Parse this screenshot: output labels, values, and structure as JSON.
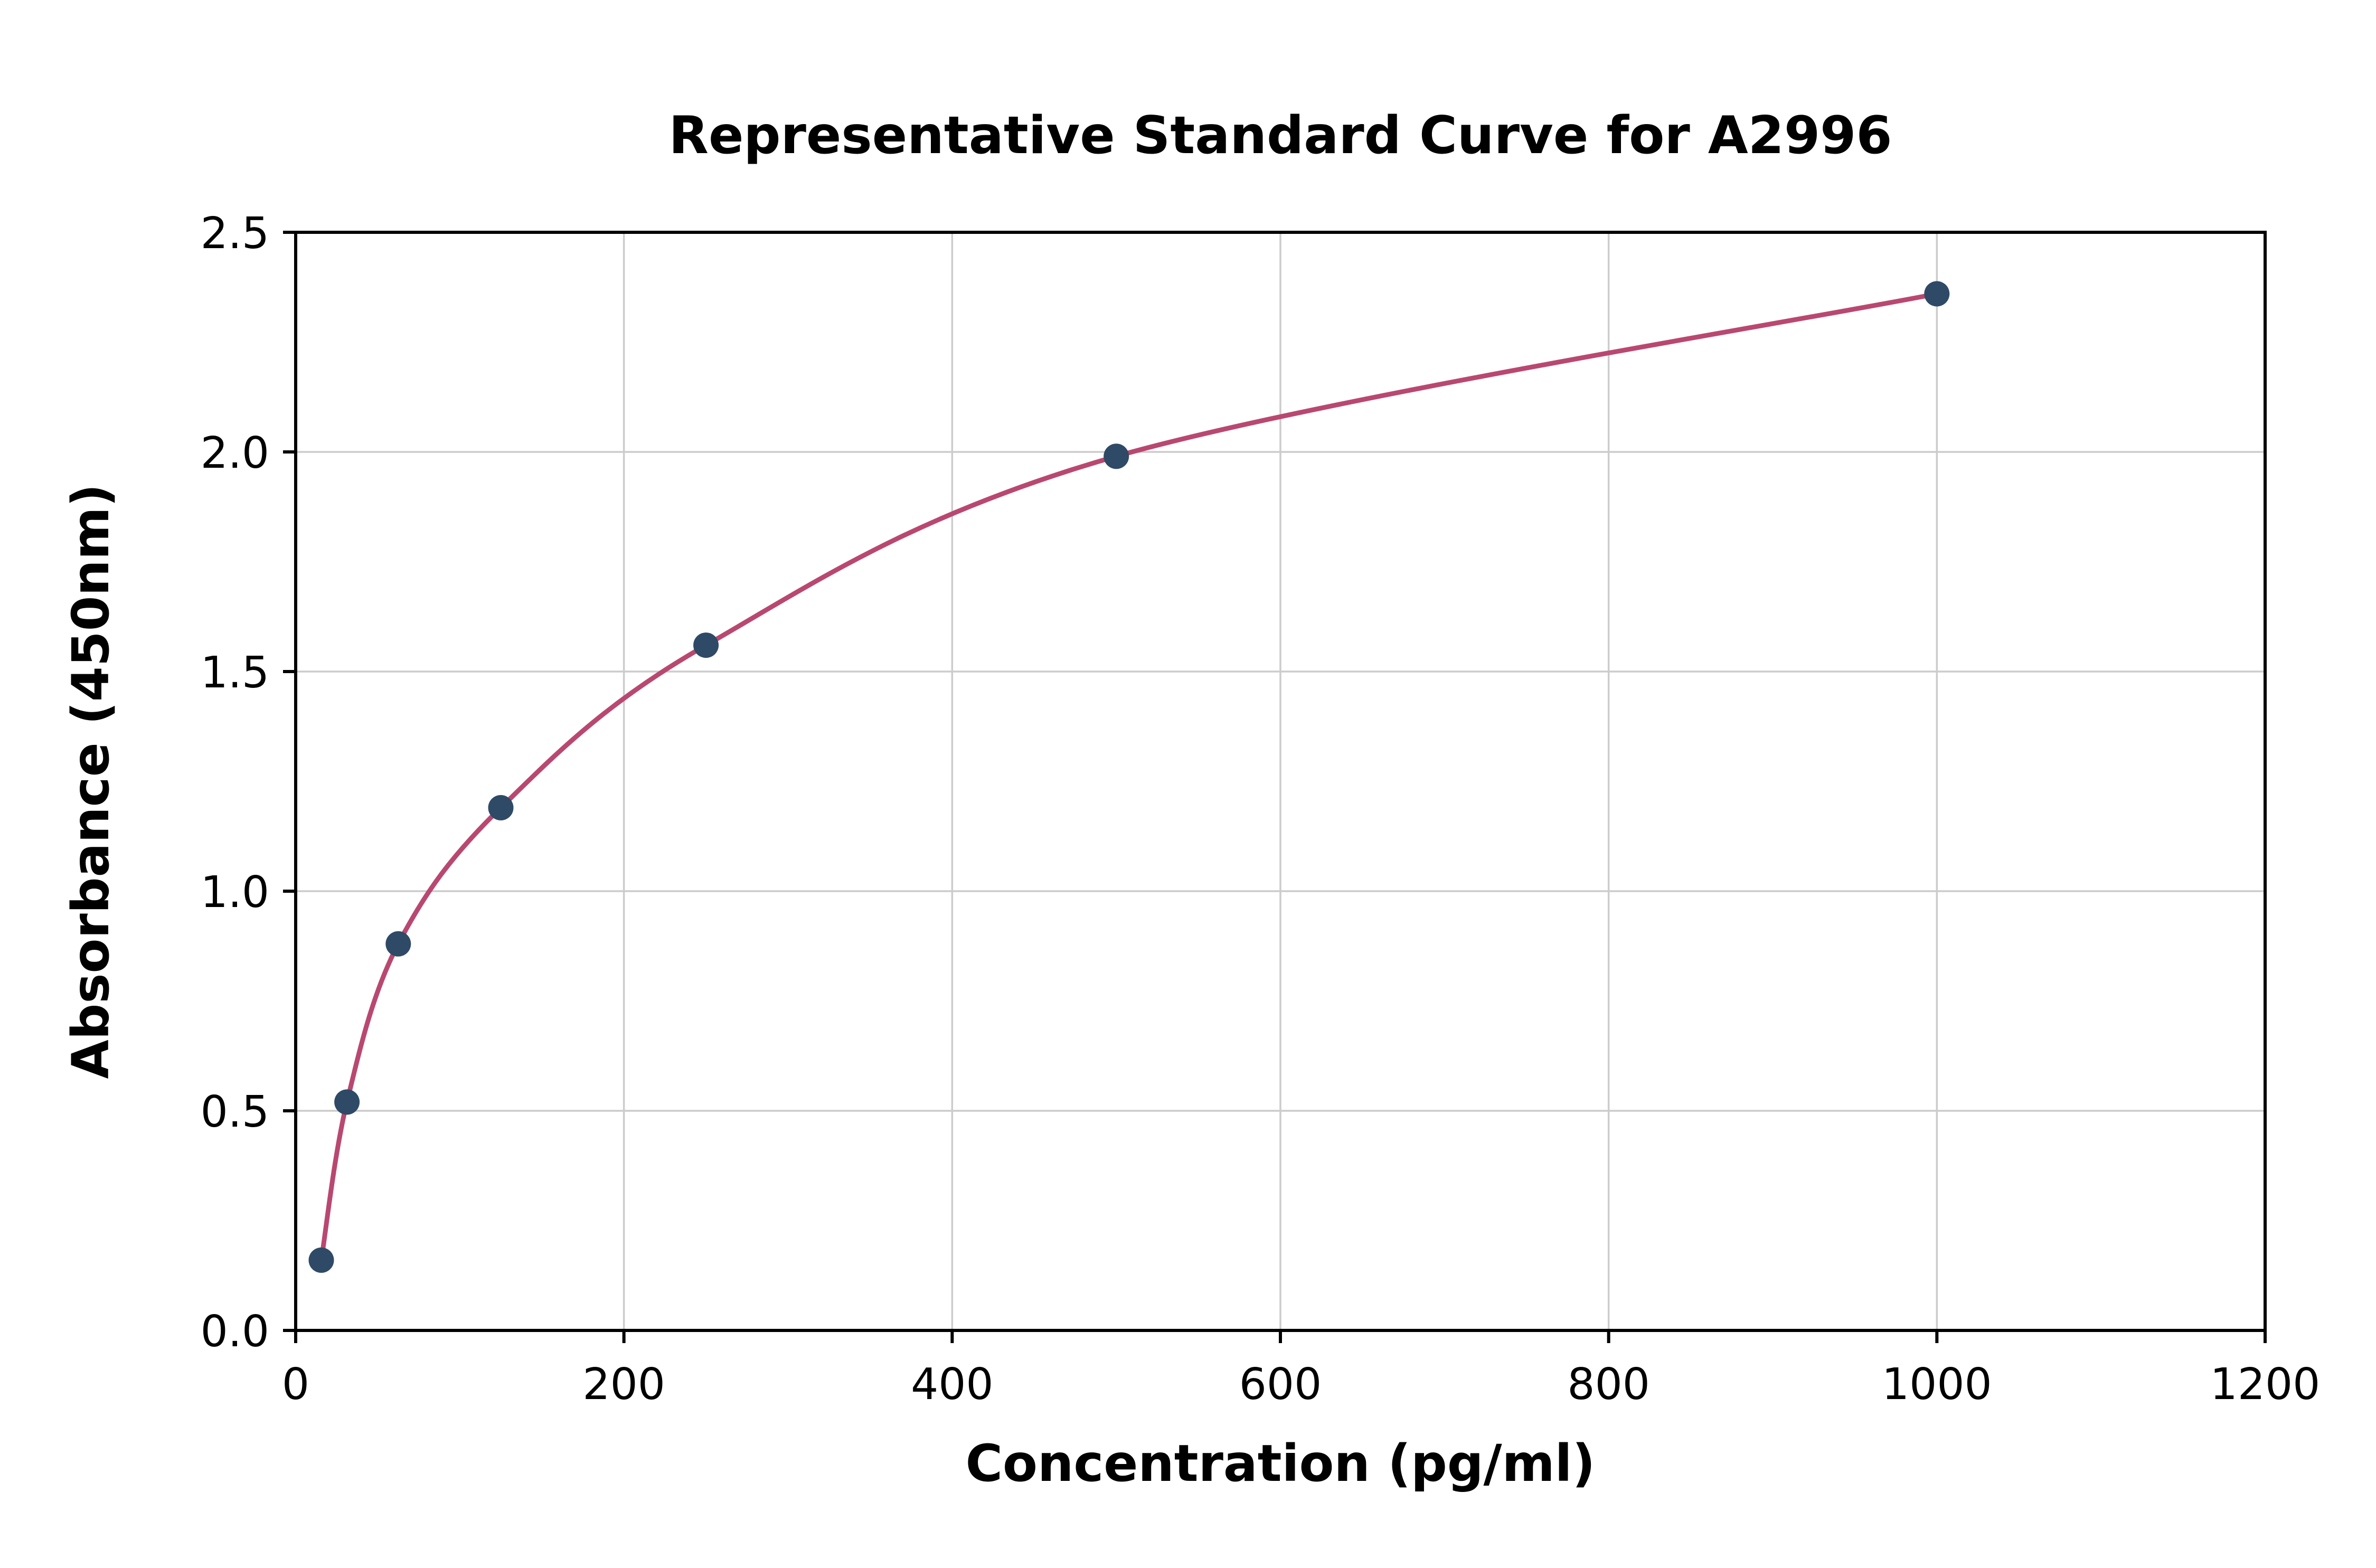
{
  "chart_data": {
    "type": "scatter",
    "title": "Representative Standard Curve for A2996",
    "xlabel": "Concentration (pg/ml)",
    "ylabel": "Absorbance (450nm)",
    "series": [
      {
        "name": "standard-curve",
        "x": [
          15.6,
          31.25,
          62.5,
          125,
          250,
          500,
          1000
        ],
        "y": [
          0.16,
          0.52,
          0.88,
          1.19,
          1.56,
          1.99,
          2.36
        ]
      }
    ],
    "xlim": [
      0,
      1200
    ],
    "ylim": [
      0,
      2.5
    ],
    "x_ticks": [
      0,
      200,
      400,
      600,
      800,
      1000,
      1200
    ],
    "x_tick_labels": [
      "0",
      "200",
      "400",
      "600",
      "800",
      "1000",
      "1200"
    ],
    "y_ticks": [
      0,
      0.5,
      1.0,
      1.5,
      2.0,
      2.5
    ],
    "y_tick_labels": [
      "0.0",
      "0.5",
      "1.0",
      "1.5",
      "2.0",
      "2.5"
    ],
    "grid": true,
    "legend": "none",
    "curve_color": "#b94870",
    "point_color": "#2e4a66",
    "grid_color": "#cccccc",
    "axis_color": "#000000"
  }
}
